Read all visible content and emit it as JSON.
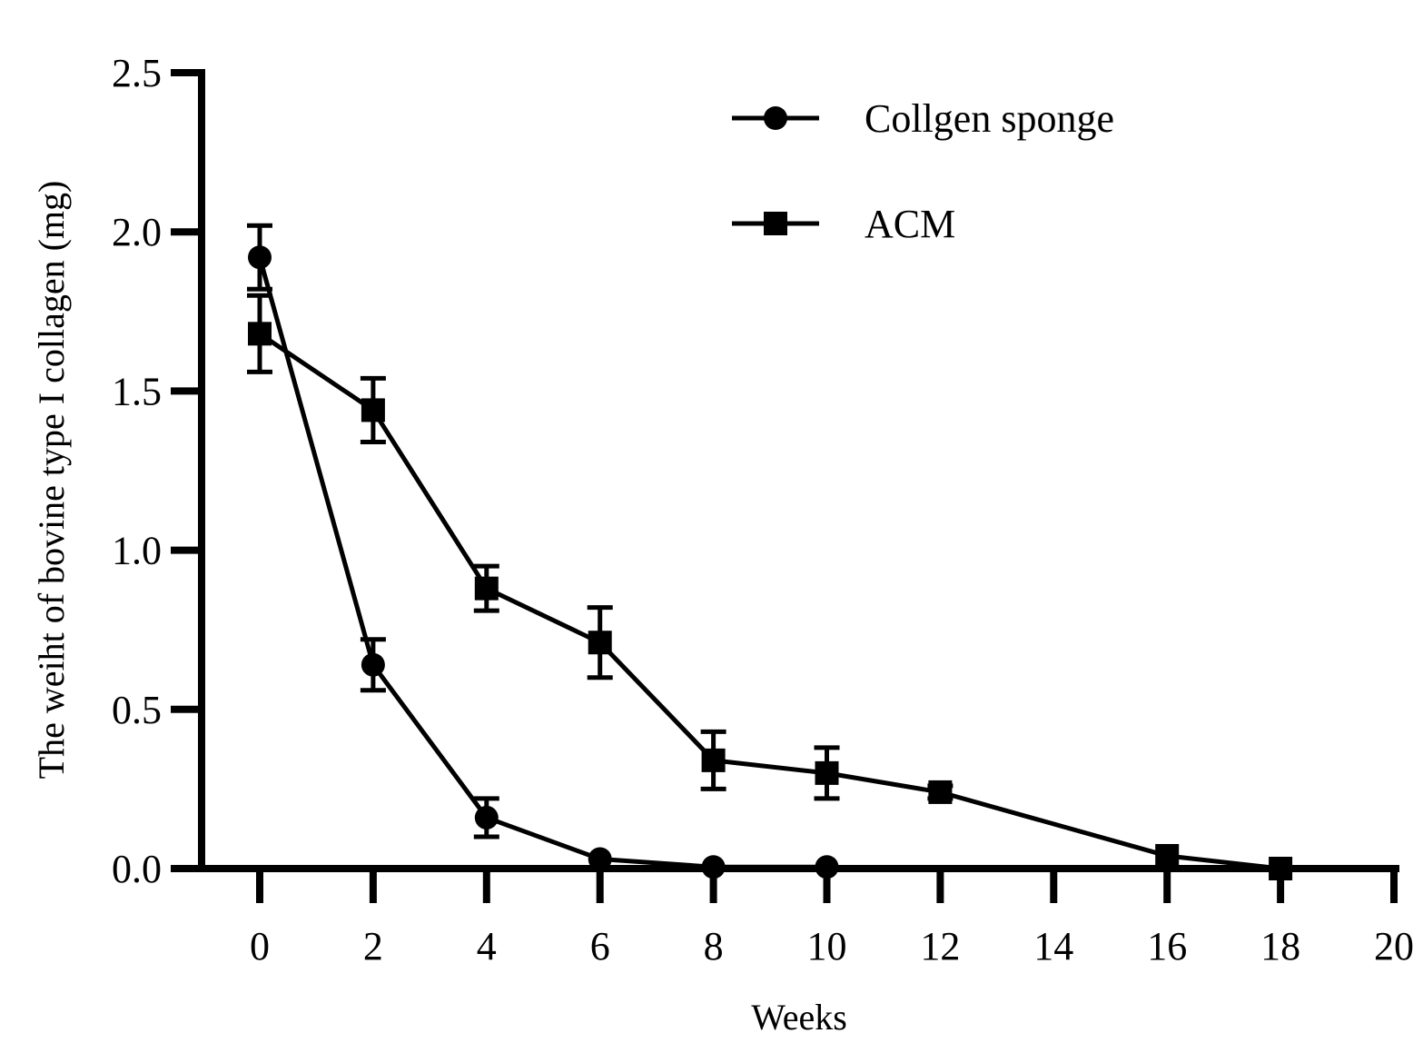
{
  "chart_data": {
    "type": "line",
    "title": "",
    "xlabel": "Weeks",
    "ylabel": "The weiht of bovine type I collagen (mg)",
    "xlim": [
      -1,
      20
    ],
    "ylim": [
      0,
      2.5
    ],
    "xticks": [
      0,
      2,
      4,
      6,
      8,
      10,
      12,
      14,
      16,
      18,
      20
    ],
    "xtick_labels": [
      "0",
      "2",
      "4",
      "6",
      "8",
      "10",
      "12",
      "14",
      "16",
      "18",
      "20"
    ],
    "yticks": [
      0,
      0.5,
      1.0,
      1.5,
      2.0,
      2.5
    ],
    "ytick_labels": [
      "0.0",
      "0.5",
      "1.0",
      "1.5",
      "2.0",
      "2.5"
    ],
    "grid": false,
    "legend_position": "top-right",
    "series": [
      {
        "name": "Collgen sponge",
        "marker": "circle",
        "color": "#000000",
        "x": [
          0,
          2,
          4,
          6,
          8,
          10
        ],
        "y": [
          1.92,
          0.64,
          0.16,
          0.03,
          0.005,
          0.005
        ],
        "err": [
          0.1,
          0.08,
          0.06,
          0,
          0,
          0
        ]
      },
      {
        "name": "ACM",
        "marker": "square",
        "color": "#000000",
        "x": [
          0,
          2,
          4,
          6,
          8,
          10,
          12,
          16,
          18
        ],
        "y": [
          1.68,
          1.44,
          0.88,
          0.71,
          0.34,
          0.3,
          0.24,
          0.04,
          0.0
        ],
        "err": [
          0.12,
          0.1,
          0.07,
          0.11,
          0.09,
          0.08,
          0.02,
          0,
          0
        ]
      }
    ]
  }
}
